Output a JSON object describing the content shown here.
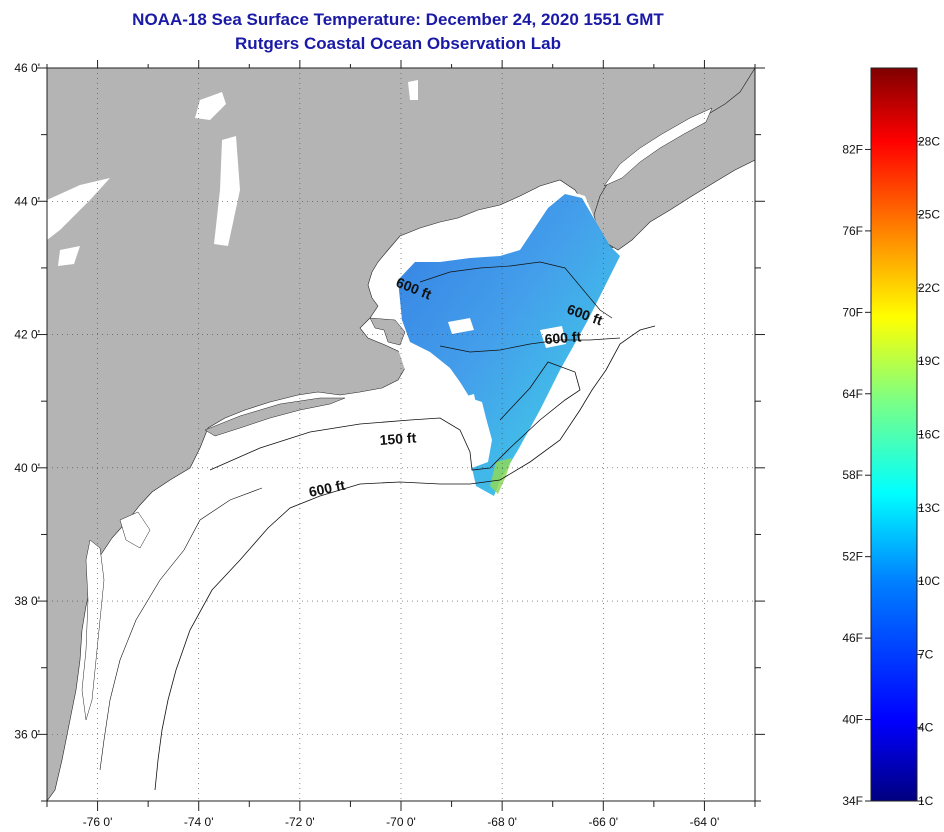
{
  "title": {
    "line1": "NOAA-18 Sea Surface Temperature:  December 24, 2020 1551 GMT",
    "line2": "Rutgers Coastal Ocean Observation Lab"
  },
  "map": {
    "lon_range": [
      -77,
      -63
    ],
    "lat_range": [
      35,
      46
    ],
    "x_tick_labels": [
      "-76 0'",
      "-74 0'",
      "-72 0'",
      "-70 0'",
      "-68 0'",
      "-66 0'",
      "-64 0'"
    ],
    "y_tick_labels": [
      "46 0'",
      "44 0'",
      "42 0'",
      "40 0'",
      "38 0'",
      "36 0'"
    ],
    "contour_labels": [
      "600 ft",
      "600 ft",
      "600 ft",
      "150 ft",
      "600 ft"
    ],
    "colors": {
      "land": "#b4b4b4",
      "ocean": "#ffffff",
      "sst_main": "#2f86e6",
      "sst_edge": "#35c8e8",
      "sst_warm": "#8ed85a",
      "grid": "#444444"
    }
  },
  "colorbar": {
    "f_labels": [
      "82F",
      "76F",
      "70F",
      "64F",
      "58F",
      "52F",
      "46F",
      "40F",
      "34F"
    ],
    "c_labels": [
      "28C",
      "25C",
      "22C",
      "19C",
      "16C",
      "13C",
      "10C",
      "7C",
      "4C",
      "1C"
    ],
    "colors": [
      "#00007f",
      "#0000ff",
      "#0080ff",
      "#00ffff",
      "#80ff80",
      "#ffff00",
      "#ff8000",
      "#ff0000",
      "#7f0000"
    ]
  }
}
